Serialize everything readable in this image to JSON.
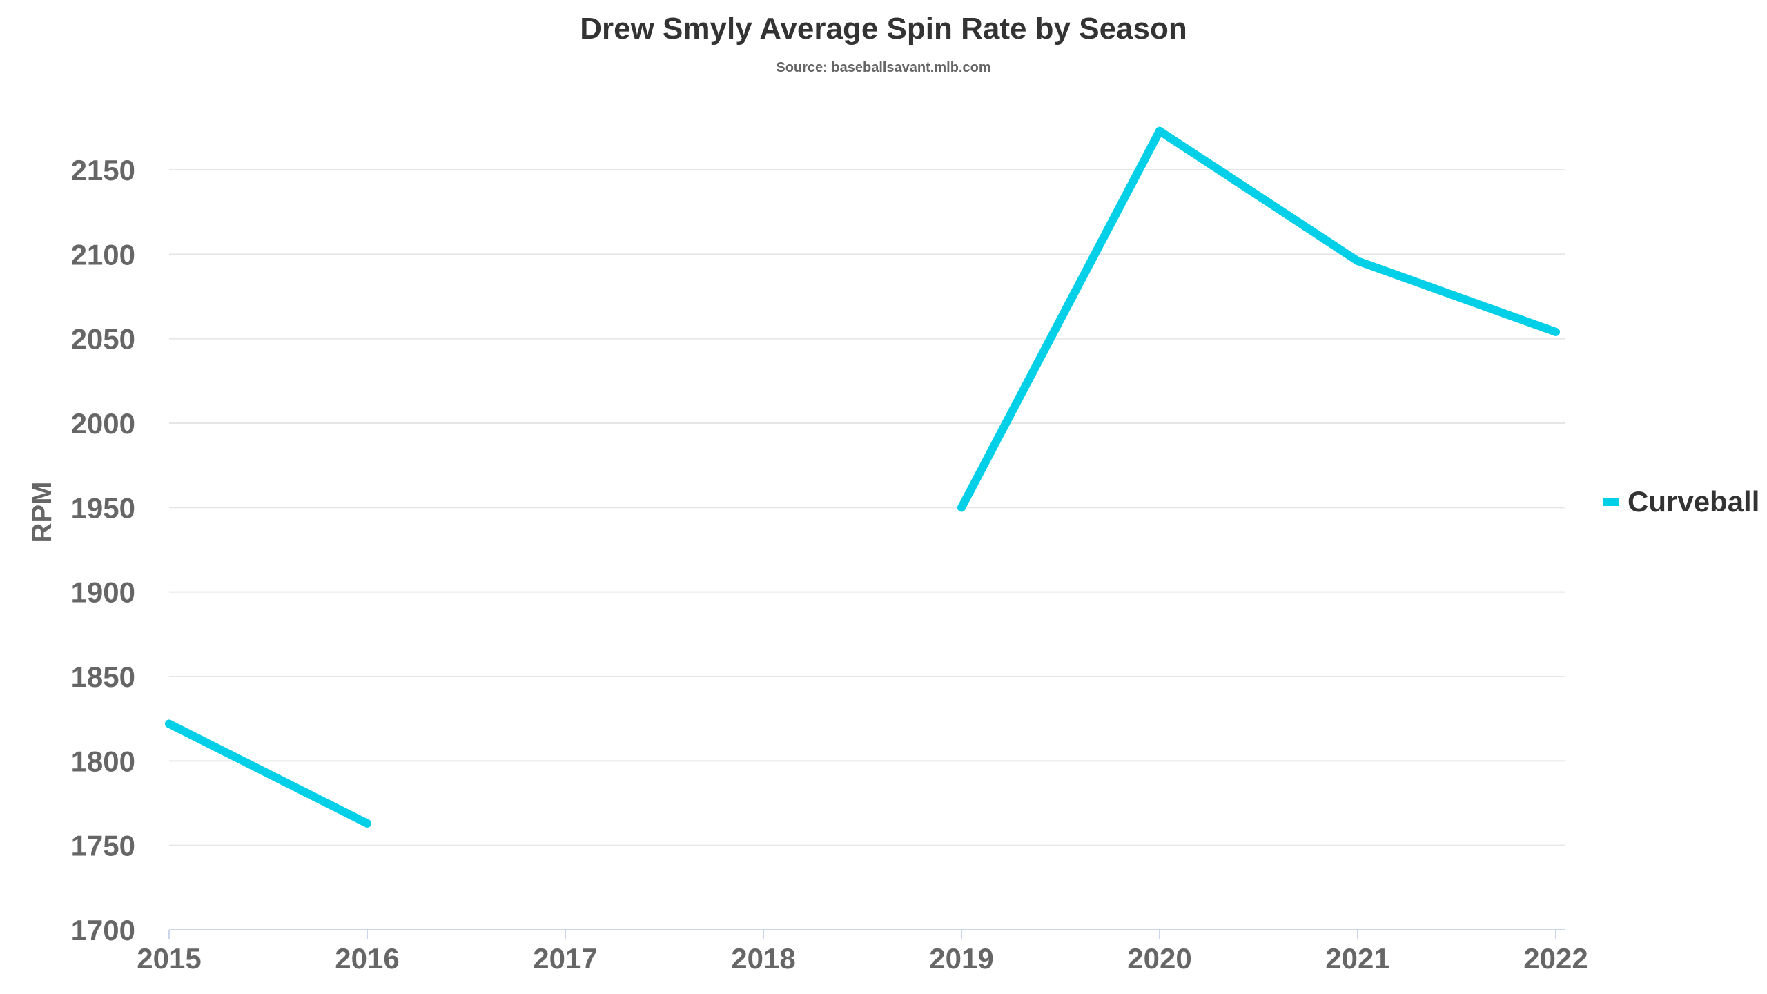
{
  "chart_data": {
    "type": "line",
    "title": "Drew Smyly Average Spin Rate by Season",
    "subtitle": "Source: baseballsavant.mlb.com",
    "xlabel": "",
    "ylabel": "RPM",
    "categories": [
      "2015",
      "2016",
      "2017",
      "2018",
      "2019",
      "2020",
      "2021",
      "2022"
    ],
    "yticks": [
      "1700",
      "1750",
      "1800",
      "1850",
      "1900",
      "1950",
      "2000",
      "2050",
      "2100",
      "2150"
    ],
    "ylim": [
      1700,
      2175
    ],
    "grid": true,
    "legend_position": "right",
    "series": [
      {
        "name": "Curveball",
        "color": "#00CFE8",
        "values": [
          1822,
          1763,
          null,
          null,
          1950,
          2173,
          2096,
          2054
        ]
      }
    ]
  }
}
